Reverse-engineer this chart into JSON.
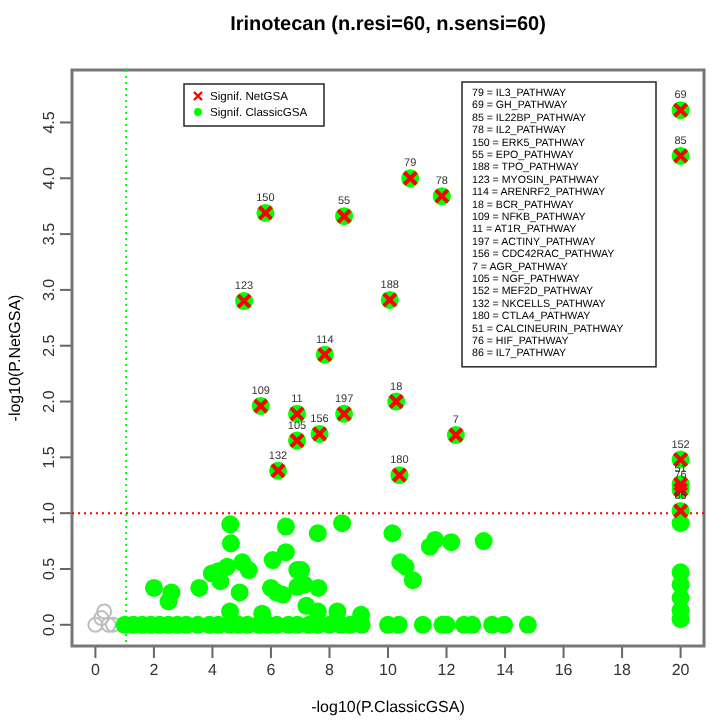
{
  "chart_data": {
    "type": "scatter",
    "title": "Irinotecan (n.resi=60, n.sensi=60)",
    "xlabel": "-log10(P.ClassicGSA)",
    "ylabel": "-log10(P.NetGSA)",
    "xlim": [
      -0.8,
      20.8
    ],
    "ylim": [
      -0.19,
      4.97
    ],
    "xticks": [
      0,
      2,
      4,
      6,
      8,
      10,
      12,
      14,
      16,
      18,
      20
    ],
    "yticks": [
      {
        "value": 0,
        "label": "0.0"
      },
      {
        "value": 0.5,
        "label": "0.5"
      },
      {
        "value": 1,
        "label": "1.0"
      },
      {
        "value": 1.5,
        "label": "1.5"
      },
      {
        "value": 2,
        "label": "2.0"
      },
      {
        "value": 2.5,
        "label": "2.5"
      },
      {
        "value": 3,
        "label": "3.0"
      },
      {
        "value": 3.5,
        "label": "3.5"
      },
      {
        "value": 4,
        "label": "4.0"
      },
      {
        "value": 4.5,
        "label": "4.5"
      }
    ],
    "legend": "top left",
    "ref_lines": [
      {
        "axis": "y",
        "value": 1,
        "color": "#ff0000",
        "line_style": "dotted"
      },
      {
        "axis": "x",
        "value": 1.05,
        "color": "#00ff00",
        "line_style": "dotted"
      }
    ],
    "series": [
      {
        "color": "#bebebe",
        "marker": "circle",
        "x": [
          0.0,
          0.2,
          0.3,
          0.45,
          0.6
        ],
        "values": [
          0.0,
          0.06,
          0.12,
          0.0,
          0.0
        ]
      },
      {
        "name": "Signif. ClassicGSA",
        "color": "#00ff00",
        "marker": "circle",
        "x": [
          10.76,
          20,
          20,
          11.84,
          5.81,
          8.5,
          10.06,
          5.08,
          7.84,
          10.28,
          5.65,
          6.89,
          8.5,
          7.66,
          12.32,
          6.89,
          20,
          6.24,
          10.39,
          20,
          20,
          20,
          2.0,
          2.6,
          2.5,
          3.55,
          3.98,
          4.2,
          4.27,
          4.5,
          4.61,
          4.63,
          4.6,
          4.93,
          5.02,
          5.24,
          5.7,
          6.06,
          6.0,
          6.19,
          6.4,
          6.51,
          6.51,
          6.9,
          7.03,
          6.9,
          7.14,
          7.21,
          7.6,
          7.6,
          7.62,
          8.27,
          8.43,
          9.08,
          10.15,
          10.42,
          10.6,
          10.85,
          11.43,
          11.61,
          12.16,
          13.27,
          1.0,
          1.3,
          1.6,
          1.9,
          2.2,
          2.5,
          2.8,
          3.1,
          3.5,
          3.9,
          4.2,
          4.6,
          4.9,
          5.2,
          5.6,
          5.9,
          6.2,
          6.6,
          6.9,
          7.3,
          7.6,
          8.0,
          8.4,
          8.7,
          9.1,
          10.0,
          10.37,
          11.19,
          11.86,
          12.0,
          12.6,
          12.88,
          13.56,
          13.97,
          14.78,
          20,
          20,
          20,
          20,
          20,
          20
        ],
        "values": [
          4.0,
          4.61,
          4.2,
          3.84,
          3.69,
          3.66,
          2.91,
          2.9,
          2.42,
          2.0,
          1.96,
          1.89,
          1.89,
          1.71,
          1.7,
          1.65,
          1.48,
          1.38,
          1.34,
          1.26,
          1.21,
          1.02,
          0.33,
          0.29,
          0.21,
          0.33,
          0.46,
          0.48,
          0.39,
          0.52,
          0.9,
          0.73,
          0.12,
          0.29,
          0.56,
          0.49,
          0.1,
          0.58,
          0.33,
          0.29,
          0.27,
          0.65,
          0.88,
          0.49,
          0.49,
          0.34,
          0.36,
          0.17,
          0.12,
          0.82,
          0.33,
          0.12,
          0.91,
          0.09,
          0.82,
          0.56,
          0.52,
          0.4,
          0.7,
          0.76,
          0.74,
          0.75,
          0,
          0,
          0,
          0,
          0,
          0,
          0,
          0,
          0,
          0,
          0,
          0,
          0,
          0,
          0,
          0,
          0,
          0,
          0,
          0,
          0,
          0,
          0,
          0,
          0,
          0,
          0,
          0,
          0,
          0,
          0,
          0,
          0,
          0,
          0,
          0.91,
          0.47,
          0.36,
          0.24,
          0.13,
          0.05
        ]
      },
      {
        "name": "Signif. NetGSA",
        "color": "#ff0000",
        "marker": "cross",
        "x": [
          10.76,
          20,
          20,
          11.84,
          5.81,
          8.5,
          10.06,
          5.08,
          7.84,
          10.28,
          5.65,
          6.89,
          8.5,
          7.66,
          12.32,
          6.89,
          20,
          6.24,
          10.39,
          20,
          20,
          20
        ],
        "values": [
          4.0,
          4.61,
          4.2,
          3.84,
          3.69,
          3.66,
          2.91,
          2.9,
          2.42,
          2.0,
          1.96,
          1.89,
          1.89,
          1.71,
          1.7,
          1.65,
          1.48,
          1.38,
          1.34,
          1.26,
          1.21,
          1.02
        ]
      }
    ],
    "annotations": [
      {
        "text": "79",
        "x": 10.76,
        "y": 4.0
      },
      {
        "text": "69",
        "x": 20,
        "y": 4.61
      },
      {
        "text": "85",
        "x": 20,
        "y": 4.2
      },
      {
        "text": "78",
        "x": 11.84,
        "y": 3.84
      },
      {
        "text": "150",
        "x": 5.81,
        "y": 3.69
      },
      {
        "text": "55",
        "x": 8.5,
        "y": 3.66
      },
      {
        "text": "188",
        "x": 10.06,
        "y": 2.91
      },
      {
        "text": "123",
        "x": 5.08,
        "y": 2.9
      },
      {
        "text": "114",
        "x": 7.84,
        "y": 2.42
      },
      {
        "text": "18",
        "x": 10.28,
        "y": 2.0
      },
      {
        "text": "109",
        "x": 5.65,
        "y": 1.96
      },
      {
        "text": "11",
        "x": 6.89,
        "y": 1.89
      },
      {
        "text": "197",
        "x": 8.5,
        "y": 1.89
      },
      {
        "text": "156",
        "x": 7.66,
        "y": 1.71
      },
      {
        "text": "7",
        "x": 12.32,
        "y": 1.7
      },
      {
        "text": "105",
        "x": 6.89,
        "y": 1.65
      },
      {
        "text": "152",
        "x": 20,
        "y": 1.48
      },
      {
        "text": "132",
        "x": 6.24,
        "y": 1.38
      },
      {
        "text": "180",
        "x": 10.39,
        "y": 1.34
      },
      {
        "text": "51",
        "x": 20,
        "y": 1.26
      },
      {
        "text": "76",
        "x": 20,
        "y": 1.21
      },
      {
        "text": "86",
        "x": 20,
        "y": 1.02
      },
      "79 = IL3_PATHWAY",
      "69 = GH_PATHWAY",
      "85 = IL22BP_PATHWAY",
      "78 = IL2_PATHWAY",
      "150 = ERK5_PATHWAY",
      "55 = EPO_PATHWAY",
      "188 = TPO_PATHWAY",
      "123 = MYOSIN_PATHWAY",
      "114 = ARENRF2_PATHWAY",
      "18 = BCR_PATHWAY",
      "109 = NFKB_PATHWAY",
      "11 = AT1R_PATHWAY",
      "197 = ACTINY_PATHWAY",
      "156 = CDC42RAC_PATHWAY",
      "7 = AGR_PATHWAY",
      "105 = NGF_PATHWAY",
      "152 = MEF2D_PATHWAY",
      "132 = NKCELLS_PATHWAY",
      "180 = CTLA4_PATHWAY",
      "51 = CALCINEURIN_PATHWAY",
      "76 = HIF_PATHWAY",
      "86 = IL7_PATHWAY"
    ]
  }
}
